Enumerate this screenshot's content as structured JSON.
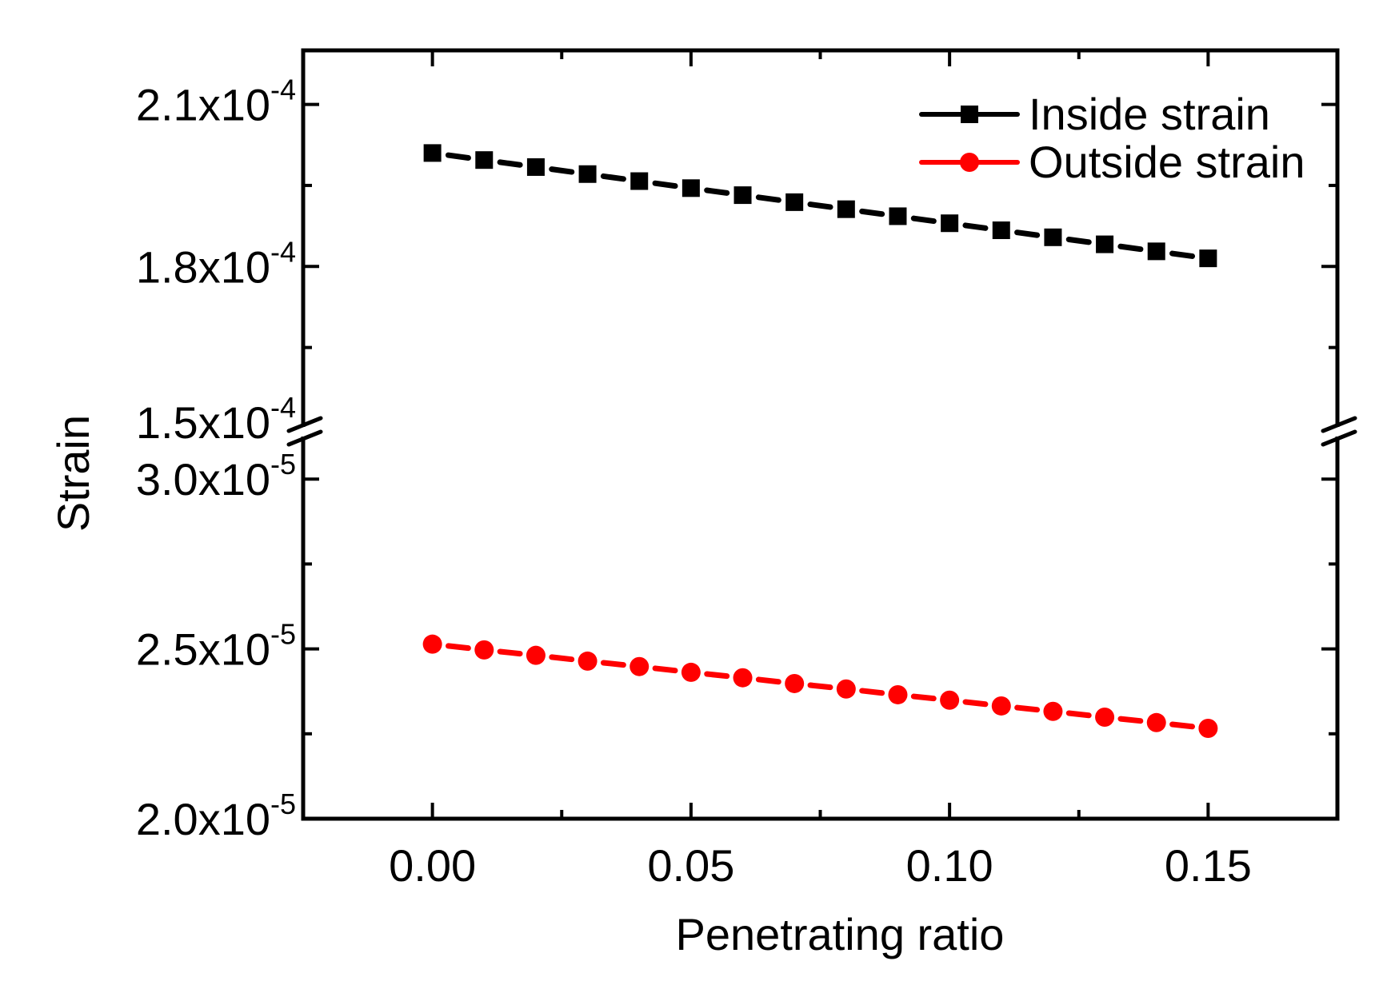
{
  "chart_data": {
    "type": "line",
    "title": "",
    "xlabel": "Penetrating ratio",
    "ylabel": "Strain",
    "xlim": [
      -0.025,
      0.175
    ],
    "x_ticks": [
      {
        "value": 0.0,
        "label": "0.00"
      },
      {
        "value": 0.05,
        "label": "0.05"
      },
      {
        "value": 0.1,
        "label": "0.10"
      },
      {
        "value": 0.15,
        "label": "0.15"
      }
    ],
    "x_minor_ticks": [
      0.025,
      0.075,
      0.125
    ],
    "y_axis_break": true,
    "y_segments": [
      {
        "name": "upper",
        "ylim": [
          0.00015,
          0.00022
        ],
        "ticks": [
          {
            "value": 0.00015,
            "mantissa": "1.5x10",
            "exponent": "-4"
          },
          {
            "value": 0.00018,
            "mantissa": "1.8x10",
            "exponent": "-4"
          },
          {
            "value": 0.00021,
            "mantissa": "2.1x10",
            "exponent": "-4"
          }
        ],
        "minor_ticks": [
          0.000165,
          0.000195
        ]
      },
      {
        "name": "lower",
        "ylim": [
          2e-05,
          3.13e-05
        ],
        "ticks": [
          {
            "value": 2e-05,
            "mantissa": "2.0x10",
            "exponent": "-5"
          },
          {
            "value": 2.5e-05,
            "mantissa": "2.5x10",
            "exponent": "-5"
          },
          {
            "value": 3e-05,
            "mantissa": "3.0x10",
            "exponent": "-5"
          }
        ],
        "minor_ticks": [
          2.25e-05,
          2.75e-05
        ]
      }
    ],
    "x": [
      0.0,
      0.01,
      0.02,
      0.03,
      0.04,
      0.05,
      0.06,
      0.07,
      0.08,
      0.09,
      0.1,
      0.11,
      0.12,
      0.13,
      0.14,
      0.15
    ],
    "series": [
      {
        "name": "Inside strain",
        "segment": "upper",
        "color": "#000000",
        "marker": "square",
        "values": [
          0.000201,
          0.0001997,
          0.0001984,
          0.0001971,
          0.0001958,
          0.0001945,
          0.0001932,
          0.0001919,
          0.0001906,
          0.0001893,
          0.000188,
          0.0001867,
          0.0001854,
          0.0001841,
          0.0001828,
          0.0001815
        ]
      },
      {
        "name": "Outside strain",
        "segment": "lower",
        "color": "#ff0000",
        "marker": "circle",
        "values": [
          2.514e-05,
          2.497e-05,
          2.481e-05,
          2.464e-05,
          2.448e-05,
          2.431e-05,
          2.415e-05,
          2.398e-05,
          2.382e-05,
          2.365e-05,
          2.349e-05,
          2.332e-05,
          2.316e-05,
          2.299e-05,
          2.283e-05,
          2.266e-05
        ]
      }
    ],
    "legend": {
      "placement": "top-right",
      "entries": [
        {
          "label": "Inside strain",
          "color": "#000000",
          "marker": "square"
        },
        {
          "label": "Outside strain",
          "color": "#ff0000",
          "marker": "circle"
        }
      ]
    },
    "grid": false
  }
}
